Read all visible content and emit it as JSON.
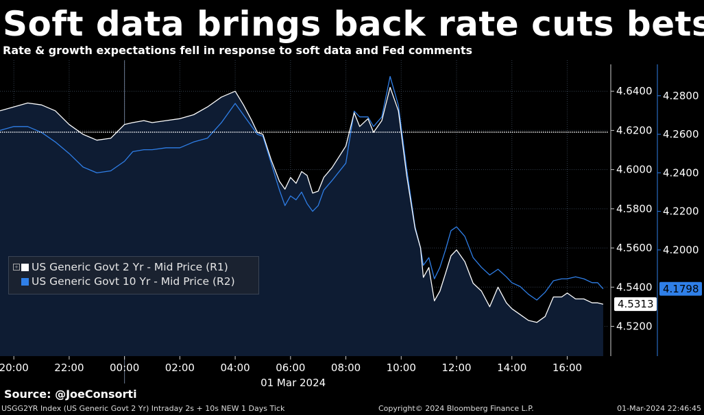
{
  "header": {
    "title": "Soft data brings back rate cuts bets",
    "subtitle": "Rate & growth expectations fell in response to soft data and Fed comments"
  },
  "legend": {
    "items": [
      {
        "label": "US Generic Govt 2 Yr - Mid Price (R1)",
        "color": "#ffffff"
      },
      {
        "label": "US Generic Govt 10 Yr - Mid Price (R2)",
        "color": "#2f7fe8"
      }
    ]
  },
  "last_values": {
    "r1": "4.5313",
    "r2": "4.1798"
  },
  "footer": {
    "source": "Source: @JoeConsorti",
    "ticker": "USGG2YR Index (US Generic Govt 2 Yr) Intraday 2s + 10s NEW 1 Days  Tick",
    "copyright": "Copyright© 2024 Bloomberg Finance L.P.",
    "timestamp": "01-Mar-2024 22:46:45"
  },
  "colors": {
    "background": "#000000",
    "area_fill": "#0e1c33",
    "r1_line": "#ffffff",
    "r2_line": "#2f7fe8",
    "r2_axis": "#2f7fe8"
  },
  "chart_data": {
    "type": "line",
    "x_unit": "time of day",
    "date_label": "01 Mar 2024",
    "x_ticks": [
      "20:00",
      "22:00",
      "00:00",
      "02:00",
      "04:00",
      "06:00",
      "08:00",
      "10:00",
      "12:00",
      "14:00",
      "16:00"
    ],
    "x_range": [
      19.5,
      41.5
    ],
    "y1_ticks": [
      "4.6400",
      "4.6200",
      "4.6000",
      "4.5800",
      "4.5600",
      "4.5400",
      "4.5200"
    ],
    "y1_range": [
      4.5048,
      4.6558
    ],
    "y2_ticks": [
      "4.2800",
      "4.2600",
      "4.2400",
      "4.2200",
      "4.2000"
    ],
    "y2_range": [
      4.1449,
      4.2984
    ],
    "reference_line_r1": 4.6191,
    "series": [
      {
        "name": "US Generic Govt 2 Yr - Mid Price (R1)",
        "axis": "right-1",
        "x": [
          19.5,
          20.0,
          20.5,
          21.0,
          21.5,
          22.0,
          22.5,
          23.0,
          23.5,
          24.0,
          24.3,
          24.7,
          25.0,
          25.5,
          26.0,
          26.5,
          27.0,
          27.5,
          28.0,
          28.3,
          28.6,
          28.8,
          29.0,
          29.3,
          29.6,
          29.8,
          30.0,
          30.2,
          30.4,
          30.6,
          30.8,
          31.0,
          31.2,
          31.5,
          32.0,
          32.3,
          32.5,
          32.8,
          33.0,
          33.3,
          33.6,
          33.9,
          34.2,
          34.5,
          34.7,
          34.8,
          35.0,
          35.2,
          35.4,
          35.6,
          35.8,
          36.0,
          36.3,
          36.6,
          36.9,
          37.2,
          37.5,
          37.8,
          38.0,
          38.3,
          38.6,
          38.9,
          39.2,
          39.5,
          39.8,
          40.0,
          40.3,
          40.6,
          40.9,
          41.1,
          41.3
        ],
        "y": [
          4.63,
          4.632,
          4.634,
          4.633,
          4.63,
          4.623,
          4.618,
          4.615,
          4.616,
          4.623,
          4.624,
          4.625,
          4.624,
          4.625,
          4.626,
          4.628,
          4.632,
          4.637,
          4.64,
          4.633,
          4.625,
          4.619,
          4.618,
          4.605,
          4.594,
          4.59,
          4.596,
          4.593,
          4.599,
          4.597,
          4.588,
          4.589,
          4.596,
          4.601,
          4.612,
          4.629,
          4.622,
          4.626,
          4.619,
          4.625,
          4.642,
          4.63,
          4.597,
          4.57,
          4.56,
          4.545,
          4.55,
          4.533,
          4.538,
          4.547,
          4.556,
          4.559,
          4.553,
          4.542,
          4.538,
          4.53,
          4.54,
          4.532,
          4.529,
          4.526,
          4.523,
          4.522,
          4.525,
          4.535,
          4.535,
          4.537,
          4.534,
          4.534,
          4.532,
          4.532,
          4.5313
        ]
      },
      {
        "name": "US Generic Govt 10 Yr - Mid Price (R2)",
        "axis": "right-2",
        "x": [
          19.5,
          20.0,
          20.5,
          21.0,
          21.5,
          22.0,
          22.5,
          23.0,
          23.5,
          24.0,
          24.3,
          24.7,
          25.0,
          25.5,
          26.0,
          26.5,
          27.0,
          27.5,
          28.0,
          28.3,
          28.6,
          28.8,
          29.0,
          29.3,
          29.6,
          29.8,
          30.0,
          30.2,
          30.4,
          30.6,
          30.8,
          31.0,
          31.2,
          31.5,
          32.0,
          32.3,
          32.5,
          32.8,
          33.0,
          33.3,
          33.6,
          33.9,
          34.2,
          34.5,
          34.7,
          34.8,
          35.0,
          35.2,
          35.4,
          35.6,
          35.8,
          36.0,
          36.3,
          36.6,
          36.9,
          37.2,
          37.5,
          37.8,
          38.0,
          38.3,
          38.6,
          38.9,
          39.2,
          39.5,
          39.8,
          40.0,
          40.3,
          40.6,
          40.9,
          41.1,
          41.3
        ],
        "y": [
          4.262,
          4.264,
          4.264,
          4.261,
          4.256,
          4.25,
          4.243,
          4.24,
          4.241,
          4.246,
          4.251,
          4.252,
          4.252,
          4.253,
          4.253,
          4.256,
          4.258,
          4.266,
          4.276,
          4.27,
          4.264,
          4.26,
          4.259,
          4.245,
          4.231,
          4.223,
          4.228,
          4.226,
          4.23,
          4.224,
          4.22,
          4.223,
          4.231,
          4.236,
          4.245,
          4.272,
          4.269,
          4.269,
          4.264,
          4.269,
          4.29,
          4.275,
          4.242,
          4.212,
          4.201,
          4.192,
          4.196,
          4.185,
          4.191,
          4.2,
          4.21,
          4.212,
          4.207,
          4.196,
          4.191,
          4.187,
          4.19,
          4.186,
          4.183,
          4.181,
          4.177,
          4.174,
          4.178,
          4.184,
          4.185,
          4.185,
          4.186,
          4.185,
          4.183,
          4.183,
          4.1798
        ]
      }
    ]
  }
}
